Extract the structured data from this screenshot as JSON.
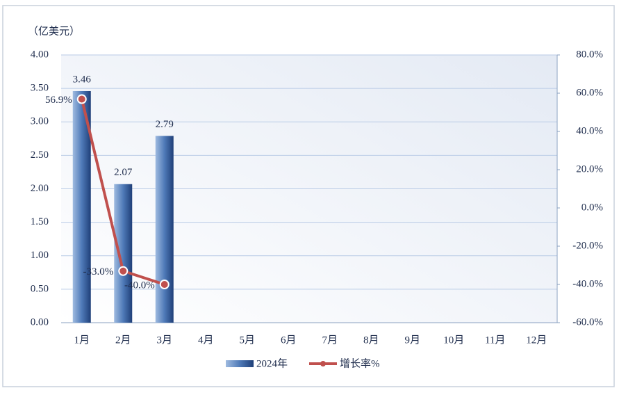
{
  "chart_data": {
    "type": "bar",
    "y_label": "（亿美元）",
    "categories": [
      "1月",
      "2月",
      "3月",
      "4月",
      "5月",
      "6月",
      "7月",
      "8月",
      "9月",
      "10月",
      "11月",
      "12月"
    ],
    "series": [
      {
        "name": "2024年",
        "type": "bar",
        "color": "#4f7ab8",
        "values": [
          3.46,
          2.07,
          2.79,
          null,
          null,
          null,
          null,
          null,
          null,
          null,
          null,
          null
        ]
      },
      {
        "name": "增长率%",
        "type": "line",
        "axis": "y2",
        "color": "#c0504d",
        "values": [
          56.9,
          -33.0,
          -40.0,
          null,
          null,
          null,
          null,
          null,
          null,
          null,
          null,
          null
        ],
        "value_labels": [
          "56.9%",
          "-33.0%",
          "-40.0%",
          null,
          null,
          null,
          null,
          null,
          null,
          null,
          null,
          null
        ]
      }
    ],
    "ylim": [
      0,
      4
    ],
    "yticks": [
      {
        "value": 0,
        "label": "0.00"
      },
      {
        "value": 0.5,
        "label": "0.50"
      },
      {
        "value": 1,
        "label": "1.00"
      },
      {
        "value": 1.5,
        "label": "1.50"
      },
      {
        "value": 2,
        "label": "2.00"
      },
      {
        "value": 2.5,
        "label": "2.50"
      },
      {
        "value": 3,
        "label": "3.00"
      },
      {
        "value": 3.5,
        "label": "3.50"
      },
      {
        "value": 4,
        "label": "4.00"
      }
    ],
    "y2lim": [
      -60,
      80
    ],
    "y2ticks": [
      {
        "value": -60,
        "label": "-60.0%"
      },
      {
        "value": -40,
        "label": "-40.0%"
      },
      {
        "value": -20,
        "label": "-20.0%"
      },
      {
        "value": 0,
        "label": "0.0%"
      },
      {
        "value": 20,
        "label": "20.0%"
      },
      {
        "value": 40,
        "label": "40.0%"
      },
      {
        "value": 60,
        "label": "60.0%"
      },
      {
        "value": 80,
        "label": "80.0%"
      }
    ],
    "grid": true
  }
}
